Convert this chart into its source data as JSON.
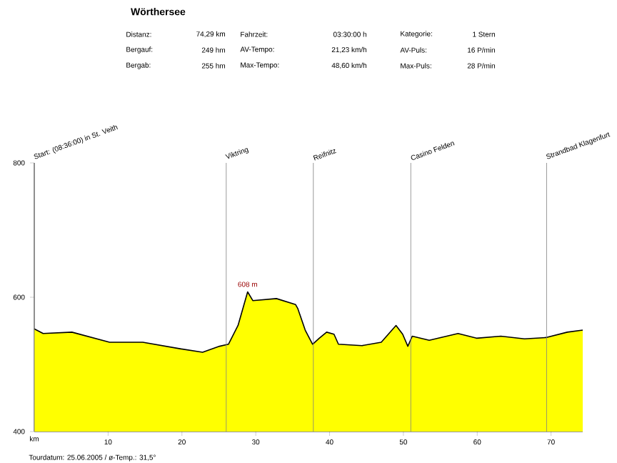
{
  "chart_data": {
    "type": "area",
    "title": "Wörthersee",
    "annotations": [
      "Distanz:",
      "74,29 km",
      "Fahrzeit:",
      "03:30:00 h",
      "Kategorie:",
      "1 Stern",
      "Bergauf:",
      "249 hm",
      "AV-Tempo:",
      "21,23 km/h",
      "AV-Puls:",
      "16 P/min",
      "Bergab:",
      "255 hm",
      "Max-Tempo:",
      "48,60 km/h",
      "Max-Puls:",
      "28 P/min",
      {
        "text": "608 m",
        "x": 28.9,
        "y": 608
      },
      "Tourdatum: 25.06.2005 / ø-Temp.: 31,5°"
    ],
    "xlabel": "km",
    "x": [
      0,
      1.2,
      5.1,
      10.2,
      14.7,
      19.9,
      22.8,
      25.1,
      26.3,
      27.6,
      28.9,
      29.6,
      32.8,
      35.4,
      35.7,
      36.7,
      37.7,
      38.6,
      39.6,
      40.6,
      41.2,
      44.4,
      47.0,
      49.0,
      49.9,
      50.6,
      51.2,
      53.5,
      57.4,
      59.9,
      63.2,
      66.4,
      69.3,
      72.2,
      74.29
    ],
    "series": [
      {
        "color": "#ffff00",
        "values": [
          553,
          546,
          548,
          533,
          533,
          523,
          518,
          527,
          530,
          558,
          608,
          595,
          598,
          589,
          583,
          551,
          530,
          539,
          548,
          545,
          530,
          528,
          533,
          558,
          545,
          527,
          542,
          536,
          546,
          539,
          542,
          538,
          540,
          548,
          551
        ]
      }
    ],
    "xlim": [
      0,
      74.29
    ],
    "xticks": [
      10,
      20,
      30,
      40,
      50,
      60,
      70
    ],
    "ylim": [
      400,
      800
    ],
    "yticks": [
      400,
      600,
      800
    ],
    "ref_lines": [
      {
        "axis": "x",
        "value": 0,
        "label": "Start: (08:36:00) in St. Veith",
        "color": "#808080"
      },
      {
        "axis": "x",
        "value": 26.0,
        "label": "Viktring",
        "color": "#808080"
      },
      {
        "axis": "x",
        "value": 37.8,
        "label": "Reifnitz",
        "color": "#808080"
      },
      {
        "axis": "x",
        "value": 51.0,
        "label": "Casino Felden",
        "color": "#808080"
      },
      {
        "axis": "x",
        "value": 69.4,
        "label": "Strandbad Klagenfurt",
        "color": "#808080"
      }
    ],
    "line_style": "solid"
  }
}
